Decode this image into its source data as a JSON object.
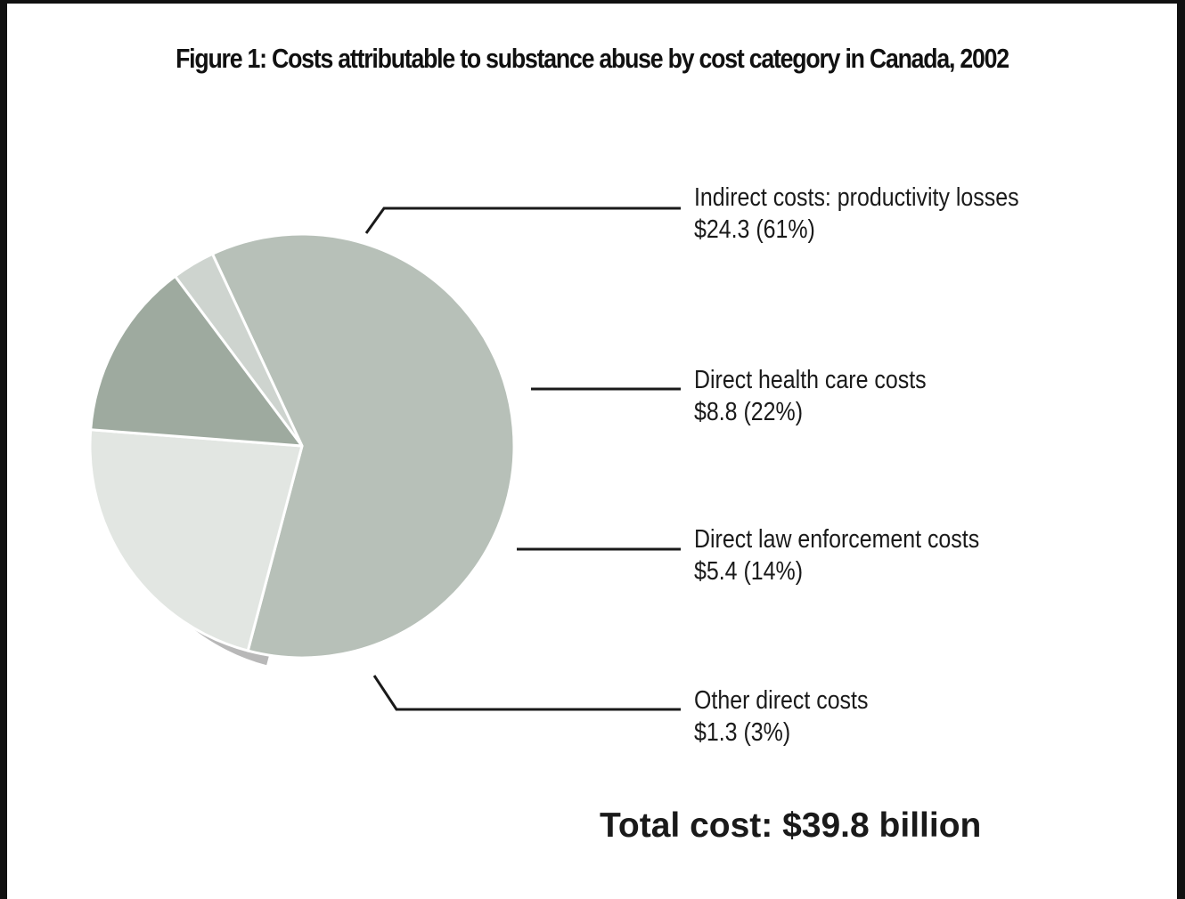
{
  "chart_data": {
    "type": "pie",
    "title": "Figure 1: Costs attributable to substance abuse by cost category in Canada, 2002",
    "slices": [
      {
        "label": "Indirect costs: productivity losses",
        "value_text": "$24.3 (61%)",
        "value": 24.3,
        "percent": 61,
        "color": "#b7c0b8"
      },
      {
        "label": "Direct health care costs",
        "value_text": "$8.8 (22%)",
        "value": 8.8,
        "percent": 22,
        "color": "#e2e6e2"
      },
      {
        "label": "Direct law enforcement costs",
        "value_text": "$5.4 (14%)",
        "value": 5.4,
        "percent": 14,
        "color": "#9eaa9f"
      },
      {
        "label": "Other direct costs",
        "value_text": "$1.3 (3%)",
        "value": 1.3,
        "percent": 3,
        "color": "#ced4cf"
      }
    ],
    "total_text": "Total cost: $39.8 billion",
    "shadow_color": "#b8b8b8",
    "leader_color": "#1a1a1a"
  }
}
